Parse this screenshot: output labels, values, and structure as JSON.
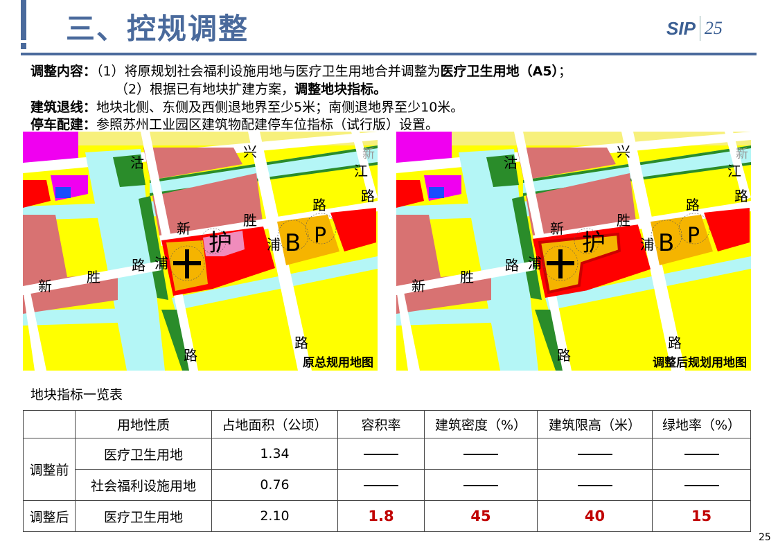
{
  "header": {
    "title": "三、控规调整",
    "logo_text": "SIP",
    "logo_year": "25"
  },
  "content": {
    "line1_label": "调整内容：",
    "line1_text": "（1）将原规划社会福利设施用地与医疗卫生用地合并调整为",
    "line1_bold": "医疗卫生用地（A5）",
    "line1_end": "；",
    "line2_text": "（2）根据已有地块扩建方案，",
    "line2_bold": "调整地块指标。",
    "line3_label": "建筑退线：",
    "line3_text": "地块北侧、东侧及西侧退地界至少5米；南侧退地界至少10米。",
    "line4_label": "停车配建：",
    "line4_text": "参照苏州工业园区建筑物配建停车位指标（试行版）设置。"
  },
  "maps": [
    {
      "caption": "原总规用地图",
      "variant": "original",
      "labels": [
        "沽",
        "兴",
        "江",
        "路",
        "路",
        "胜",
        "新",
        "护",
        "浦",
        "B",
        "P",
        "路",
        "浦",
        "胜",
        "新",
        "路",
        "路",
        "新"
      ]
    },
    {
      "caption": "调整后规划用地图",
      "variant": "adjusted",
      "labels": [
        "沽",
        "兴",
        "江",
        "路",
        "路",
        "胜",
        "新",
        "护",
        "浦",
        "B",
        "P",
        "路",
        "浦",
        "胜",
        "新",
        "路",
        "路",
        "新"
      ]
    }
  ],
  "colors": {
    "residential": "#ffff00",
    "water": "#b4f6f6",
    "green": "#2a8c2a",
    "commercial": "#d87272",
    "medical": "#ff0000",
    "orange": "#f5b400",
    "magenta": "#f000f0",
    "accent": "#4a6a9c",
    "highlight": "#c00000"
  },
  "table": {
    "caption": "地块指标一览表",
    "headers": [
      "",
      "用地性质",
      "占地面积（公顷）",
      "容积率",
      "建筑密度（%）",
      "建筑限高（米）",
      "绿地率（%）"
    ],
    "group_before": "调整前",
    "group_after": "调整后",
    "rows": [
      {
        "type": "医疗卫生用地",
        "area": "1.34",
        "far": "——",
        "density": "——",
        "height": "——",
        "green": "——"
      },
      {
        "type": "社会福利设施用地",
        "area": "0.76",
        "far": "——",
        "density": "——",
        "height": "——",
        "green": "——"
      },
      {
        "type": "医疗卫生用地",
        "area": "2.10",
        "far": "1.8",
        "density": "45",
        "height": "40",
        "green": "15"
      }
    ]
  },
  "page_number": "25"
}
